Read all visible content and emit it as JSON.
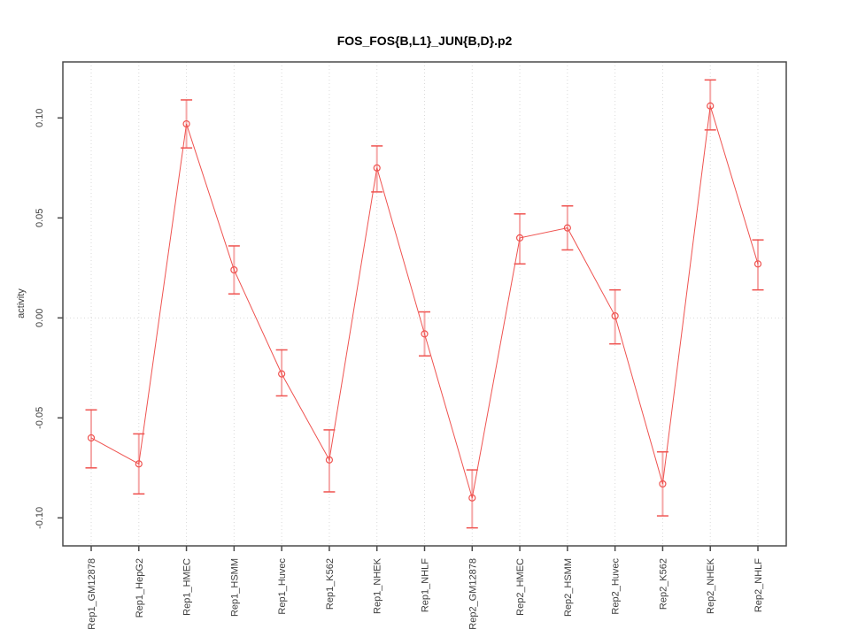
{
  "figure": {
    "title": "FOS_FOS{B,L1}_JUN{B,D}.p2"
  },
  "chart_data": {
    "type": "line",
    "title": "FOS_FOS{B,L1}_JUN{B,D}.p2",
    "xlabel": "",
    "ylabel": "activity",
    "categories": [
      "Rep1_GM12878",
      "Rep1_HepG2",
      "Rep1_HMEC",
      "Rep1_HSMM",
      "Rep1_Huvec",
      "Rep1_K562",
      "Rep1_NHEK",
      "Rep1_NHLF",
      "Rep2_GM12878",
      "Rep2_HMEC",
      "Rep2_HSMM",
      "Rep2_Huvec",
      "Rep2_K562",
      "Rep2_NHEK",
      "Rep2_NHLF"
    ],
    "series": [
      {
        "name": "activity",
        "values": [
          -0.06,
          -0.073,
          0.097,
          0.024,
          -0.028,
          -0.071,
          0.075,
          -0.008,
          -0.09,
          0.04,
          0.045,
          0.001,
          -0.083,
          0.106,
          0.027
        ],
        "error_low": [
          -0.075,
          -0.088,
          0.085,
          0.012,
          -0.039,
          -0.087,
          0.063,
          -0.019,
          -0.105,
          0.027,
          0.034,
          -0.013,
          -0.099,
          0.094,
          0.014
        ],
        "error_high": [
          -0.046,
          -0.058,
          0.109,
          0.036,
          -0.016,
          -0.056,
          0.086,
          0.003,
          -0.076,
          0.052,
          0.056,
          0.014,
          -0.067,
          0.119,
          0.039
        ]
      }
    ],
    "yticks": [
      -0.1,
      -0.05,
      0.0,
      0.05,
      0.1
    ],
    "ytick_labels": [
      "-0.10",
      "-0.05",
      "0.00",
      "0.05",
      "0.10"
    ],
    "ylim": [
      -0.114,
      0.128
    ],
    "grid": "dotted vertical line at each category; dotted horizontal line at y=0",
    "legend_position": "none",
    "marker": "open-circle",
    "colors": {
      "line": "#ef5350",
      "marker": "#ef5350",
      "errorbar_cap": "#ef5350",
      "errorbar_stem": "#f5a9a9",
      "gridline": "#d9d9d9",
      "axis": "#4a4a4a",
      "tick_text": "#3c3c3c",
      "background": "#ffffff"
    }
  }
}
